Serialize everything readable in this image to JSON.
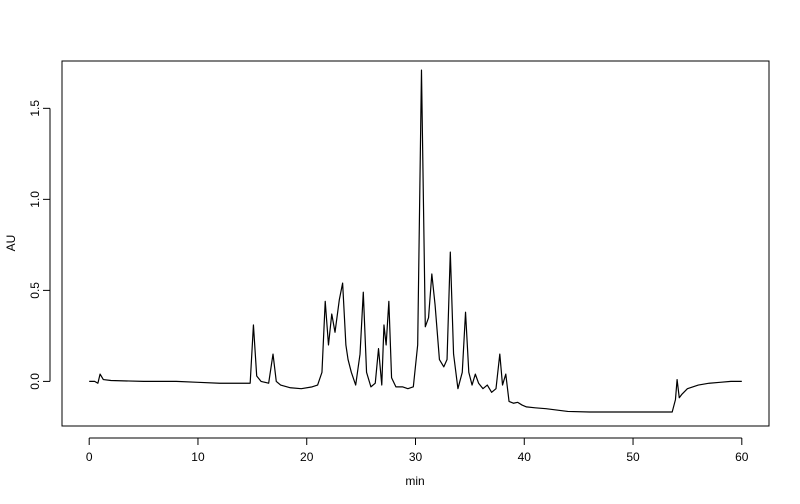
{
  "chart_data": {
    "type": "line",
    "title": "",
    "xlabel": "min",
    "ylabel": "AU",
    "xlim": [
      -2.5,
      62.5
    ],
    "ylim": [
      -0.245,
      1.76
    ],
    "xticks": [
      0,
      10,
      20,
      30,
      40,
      50,
      60
    ],
    "yticks": [
      0.0,
      0.5,
      1.0,
      1.5
    ],
    "ytick_labels": [
      "0.0",
      "0.5",
      "1.0",
      "1.5"
    ],
    "grid": false,
    "line_color": "#000000",
    "series": [
      {
        "values": [
          [
            0,
            0.0
          ],
          [
            0.5,
            0.0
          ],
          [
            0.8,
            -0.01
          ],
          [
            1.0,
            0.04
          ],
          [
            1.3,
            0.01
          ],
          [
            2.0,
            0.005
          ],
          [
            5,
            0.0
          ],
          [
            8,
            0.0
          ],
          [
            10,
            -0.005
          ],
          [
            12,
            -0.01
          ],
          [
            14,
            -0.01
          ],
          [
            14.8,
            -0.01
          ],
          [
            15.1,
            0.31
          ],
          [
            15.4,
            0.03
          ],
          [
            15.8,
            0.0
          ],
          [
            16.5,
            -0.01
          ],
          [
            16.9,
            0.15
          ],
          [
            17.2,
            0.0
          ],
          [
            17.6,
            -0.02
          ],
          [
            18.5,
            -0.035
          ],
          [
            19.5,
            -0.04
          ],
          [
            20.5,
            -0.03
          ],
          [
            21.0,
            -0.02
          ],
          [
            21.4,
            0.05
          ],
          [
            21.7,
            0.44
          ],
          [
            22.0,
            0.2
          ],
          [
            22.3,
            0.37
          ],
          [
            22.6,
            0.27
          ],
          [
            23.0,
            0.45
          ],
          [
            23.3,
            0.54
          ],
          [
            23.6,
            0.2
          ],
          [
            23.8,
            0.12
          ],
          [
            24.1,
            0.05
          ],
          [
            24.5,
            -0.02
          ],
          [
            24.9,
            0.15
          ],
          [
            25.2,
            0.49
          ],
          [
            25.5,
            0.05
          ],
          [
            25.9,
            -0.03
          ],
          [
            26.3,
            -0.01
          ],
          [
            26.6,
            0.18
          ],
          [
            26.9,
            -0.02
          ],
          [
            27.1,
            0.31
          ],
          [
            27.3,
            0.2
          ],
          [
            27.55,
            0.44
          ],
          [
            27.8,
            0.02
          ],
          [
            28.2,
            -0.03
          ],
          [
            28.8,
            -0.03
          ],
          [
            29.3,
            -0.04
          ],
          [
            29.8,
            -0.03
          ],
          [
            30.2,
            0.2
          ],
          [
            30.55,
            1.71
          ],
          [
            30.9,
            0.3
          ],
          [
            31.2,
            0.35
          ],
          [
            31.5,
            0.59
          ],
          [
            31.8,
            0.42
          ],
          [
            32.2,
            0.12
          ],
          [
            32.6,
            0.08
          ],
          [
            32.9,
            0.12
          ],
          [
            33.2,
            0.71
          ],
          [
            33.5,
            0.15
          ],
          [
            33.9,
            -0.04
          ],
          [
            34.3,
            0.05
          ],
          [
            34.6,
            0.38
          ],
          [
            34.9,
            0.05
          ],
          [
            35.2,
            -0.02
          ],
          [
            35.5,
            0.04
          ],
          [
            35.8,
            -0.01
          ],
          [
            36.2,
            -0.04
          ],
          [
            36.6,
            -0.02
          ],
          [
            37.0,
            -0.06
          ],
          [
            37.4,
            -0.04
          ],
          [
            37.75,
            0.15
          ],
          [
            38.0,
            -0.02
          ],
          [
            38.3,
            0.04
          ],
          [
            38.6,
            -0.11
          ],
          [
            39.0,
            -0.12
          ],
          [
            39.4,
            -0.115
          ],
          [
            39.8,
            -0.13
          ],
          [
            40.2,
            -0.14
          ],
          [
            41,
            -0.145
          ],
          [
            42,
            -0.15
          ],
          [
            44,
            -0.165
          ],
          [
            46,
            -0.168
          ],
          [
            48,
            -0.168
          ],
          [
            50,
            -0.168
          ],
          [
            52,
            -0.168
          ],
          [
            53.6,
            -0.168
          ],
          [
            53.9,
            -0.1
          ],
          [
            54.05,
            0.01
          ],
          [
            54.25,
            -0.09
          ],
          [
            54.5,
            -0.07
          ],
          [
            55,
            -0.04
          ],
          [
            56,
            -0.02
          ],
          [
            57,
            -0.01
          ],
          [
            58,
            -0.005
          ],
          [
            59,
            0.0
          ],
          [
            60,
            0.0
          ]
        ]
      }
    ]
  }
}
